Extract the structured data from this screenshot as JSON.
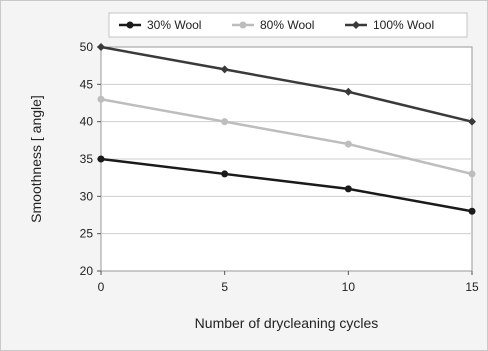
{
  "chart_data": {
    "type": "line",
    "title": "",
    "xlabel": "Number of drycleaning cycles",
    "ylabel": "Smoothness [ angle]",
    "x": [
      0,
      5,
      10,
      15
    ],
    "xlim": [
      0,
      15
    ],
    "xticks": [
      0,
      5,
      10,
      15
    ],
    "ylim": [
      20,
      50
    ],
    "yticks": [
      20,
      25,
      30,
      35,
      40,
      45,
      50
    ],
    "grid": true,
    "legend_position": "top",
    "series": [
      {
        "name": "30% Wool",
        "values": [
          35,
          33,
          31,
          28
        ],
        "color": "#1a1a1a",
        "marker": "circle"
      },
      {
        "name": "80% Wool",
        "values": [
          43,
          40,
          37,
          33
        ],
        "color": "#bdbdbd",
        "marker": "circle"
      },
      {
        "name": "100% Wool",
        "values": [
          50,
          47,
          44,
          40
        ],
        "color": "#3a3a3a",
        "marker": "diamond"
      }
    ]
  }
}
